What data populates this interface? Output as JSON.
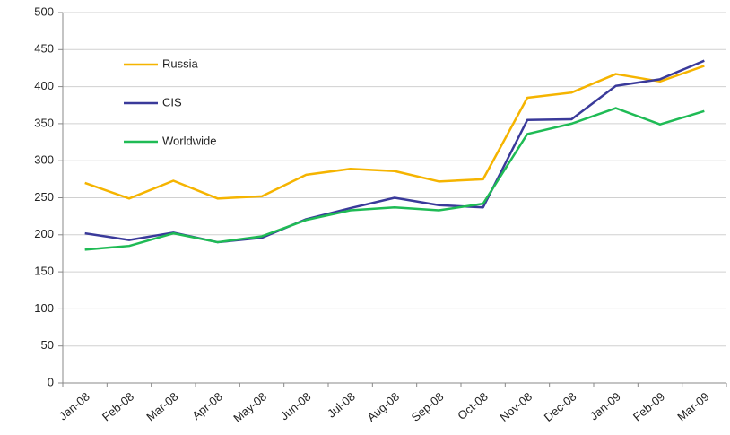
{
  "chart_data": {
    "type": "line",
    "categories": [
      "Jan-08",
      "Feb-08",
      "Mar-08",
      "Apr-08",
      "May-08",
      "Jun-08",
      "Jul-08",
      "Aug-08",
      "Sep-08",
      "Oct-08",
      "Nov-08",
      "Dec-08",
      "Jan-09",
      "Feb-09",
      "Mar-09"
    ],
    "series": [
      {
        "name": "Russia",
        "color": "#f5b400",
        "values": [
          270,
          249,
          273,
          249,
          252,
          281,
          289,
          286,
          272,
          275,
          385,
          392,
          417,
          407,
          428
        ]
      },
      {
        "name": "CIS",
        "color": "#3a3a9a",
        "values": [
          202,
          193,
          203,
          190,
          196,
          221,
          236,
          250,
          240,
          237,
          355,
          356,
          401,
          410,
          435
        ]
      },
      {
        "name": "Worldwide",
        "color": "#1fbb55",
        "values": [
          180,
          185,
          202,
          190,
          198,
          220,
          233,
          237,
          233,
          242,
          336,
          350,
          371,
          349,
          367
        ]
      }
    ],
    "ylim": [
      0,
      500
    ],
    "yticks": [
      0,
      50,
      100,
      150,
      200,
      250,
      300,
      350,
      400,
      450,
      500
    ],
    "grid": true,
    "legend": "upper left"
  }
}
